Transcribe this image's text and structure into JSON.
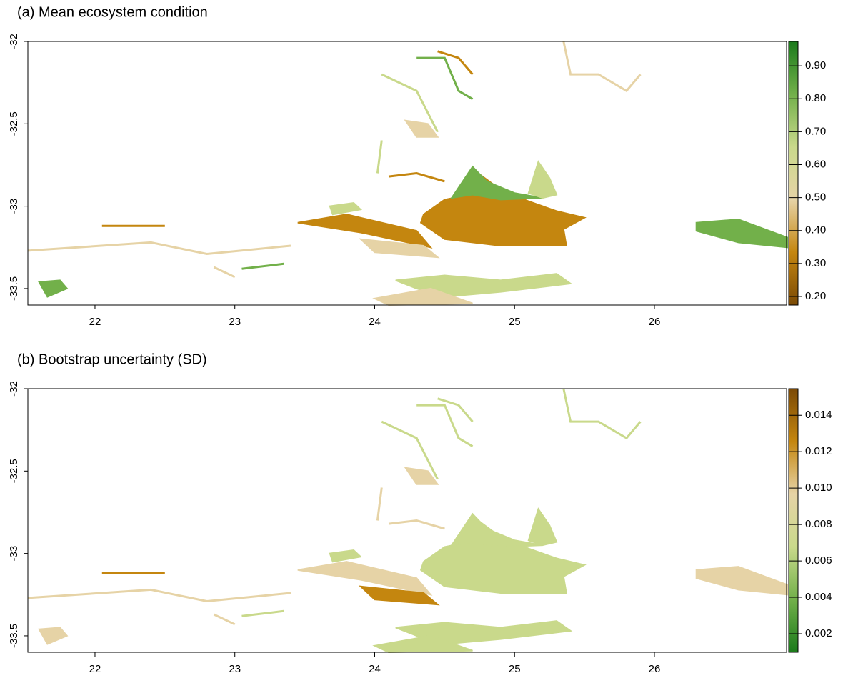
{
  "chart_data": [
    {
      "type": "raster",
      "title": "(a) Mean ecosystem condition",
      "xlim": [
        21.52,
        26.945
      ],
      "ylim": [
        -33.6,
        -32
      ],
      "xticks": [
        22,
        23,
        24,
        25,
        26
      ],
      "yticks": [
        -32,
        -32.5,
        -33,
        -33.5
      ],
      "zlim": [
        0.174,
        0.974
      ],
      "zticks": [
        {
          "value": 0.2,
          "label": "0.20"
        },
        {
          "value": 0.3,
          "label": "0.30"
        },
        {
          "value": 0.4,
          "label": "0.40"
        },
        {
          "value": 0.5,
          "label": "0.50"
        },
        {
          "value": 0.6,
          "label": "0.60"
        },
        {
          "value": 0.7,
          "label": "0.70"
        },
        {
          "value": 0.8,
          "label": "0.80"
        },
        {
          "value": 0.9,
          "label": "0.90"
        }
      ],
      "colors": [
        "#7b4a06",
        "#c4860f",
        "#e6d3a6",
        "#c9d98b",
        "#72b04a",
        "#1b7a1b"
      ]
    },
    {
      "type": "raster",
      "title": "(b) Bootstrap uncertainty (SD)",
      "xlim": [
        21.52,
        26.945
      ],
      "ylim": [
        -33.6,
        -32
      ],
      "xticks": [
        22,
        23,
        24,
        25,
        26
      ],
      "yticks": [
        -32,
        -32.5,
        -33,
        -33.5
      ],
      "zlim": [
        0.00098,
        0.01546
      ],
      "zticks": [
        0.002,
        0.004,
        0.006,
        0.008,
        {
          "value": 0.01,
          "label": "0.010"
        },
        0.012,
        0.014
      ],
      "colors": [
        "#1b7a1b",
        "#72b04a",
        "#c9d98b",
        "#e6d3a6",
        "#c4860f",
        "#7b4a06"
      ]
    }
  ]
}
